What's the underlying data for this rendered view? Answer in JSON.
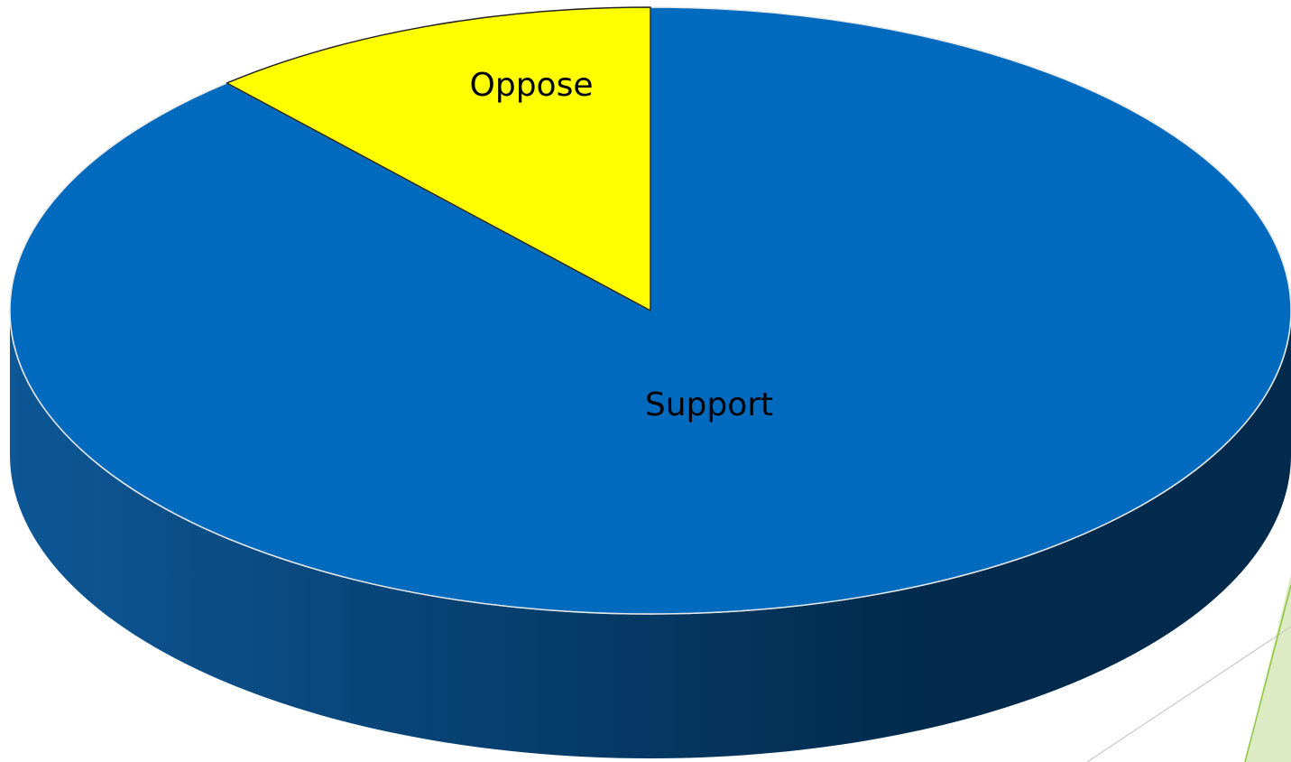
{
  "chart_data": {
    "type": "pie",
    "style": "3d",
    "slices": [
      {
        "label": "Support",
        "value": 88.5,
        "color": "#006ABE"
      },
      {
        "label": "Oppose",
        "value": 11.5,
        "color": "#FFFF00"
      }
    ],
    "side_colors": [
      "#0D5796",
      "#012A4C"
    ],
    "accent_color": "#8DC63F"
  }
}
